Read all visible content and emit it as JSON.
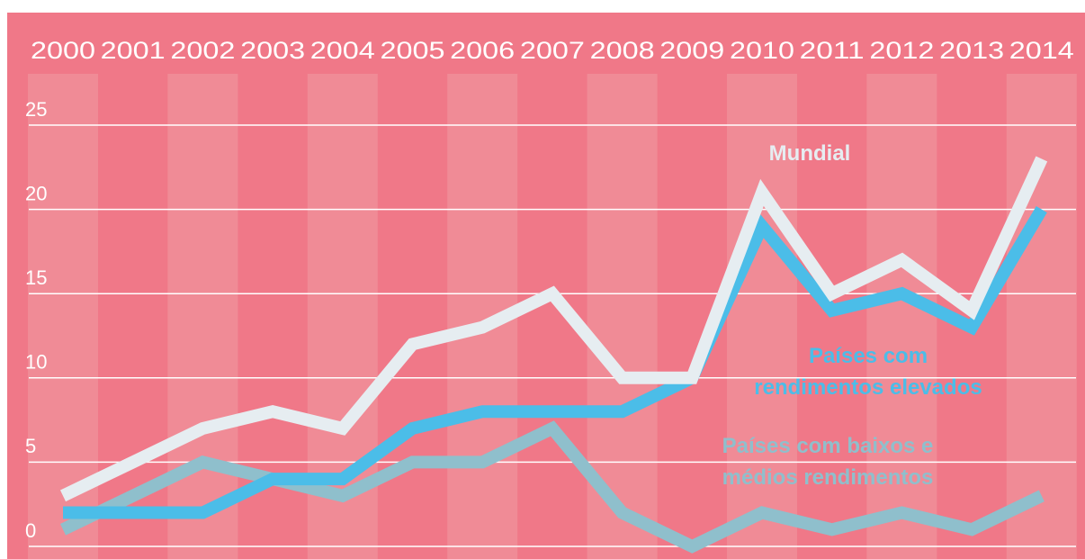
{
  "chart_data": {
    "type": "line",
    "categories": [
      "2000",
      "2001",
      "2002",
      "2003",
      "2004",
      "2005",
      "2006",
      "2007",
      "2008",
      "2009",
      "2010",
      "2011",
      "2012",
      "2013",
      "2014"
    ],
    "ylim": [
      0,
      25
    ],
    "yticks": [
      0,
      5,
      10,
      15,
      20,
      25
    ],
    "grid": true,
    "series": [
      {
        "name": [
          "Países com baixos e",
          "médios rendimentos"
        ],
        "color": "#8fbfcc",
        "values": [
          1,
          3,
          5,
          4,
          3,
          5,
          5,
          7,
          2,
          0,
          2,
          1,
          2,
          1,
          3
        ]
      },
      {
        "name": [
          "Países com",
          "rendimentos elevados"
        ],
        "color": "#4bbde8",
        "values": [
          2,
          2,
          2,
          4,
          4,
          7,
          8,
          8,
          8,
          10,
          19,
          14,
          15,
          13,
          20
        ]
      },
      {
        "name": [
          "Mundial"
        ],
        "color": "#e6edf1",
        "values": [
          3,
          5,
          7,
          8,
          7,
          12,
          13,
          15,
          10,
          10,
          21,
          15,
          17,
          14,
          23
        ]
      }
    ]
  }
}
